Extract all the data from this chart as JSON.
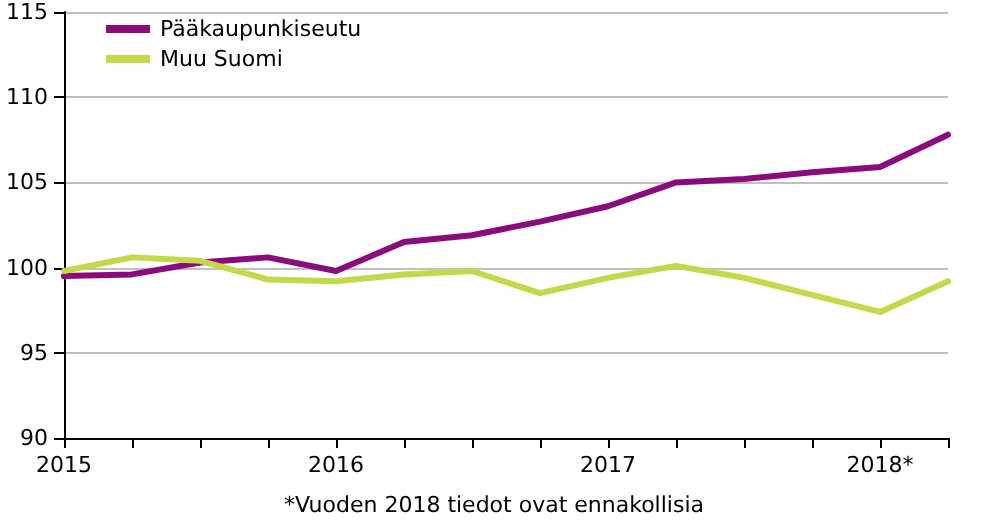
{
  "chart_data": {
    "type": "line",
    "categories": [
      "2015",
      null,
      null,
      null,
      "2016",
      null,
      null,
      null,
      "2017",
      null,
      null,
      null,
      "2018*",
      null
    ],
    "series": [
      {
        "name": "Pääkaupunkiseutu",
        "color": "#8b0a7c",
        "values": [
          99.5,
          99.6,
          100.3,
          100.6,
          99.8,
          101.5,
          101.9,
          102.7,
          103.6,
          105.0,
          105.2,
          105.6,
          105.9,
          107.8
        ]
      },
      {
        "name": "Muu Suomi",
        "color": "#c3d94a",
        "values": [
          99.8,
          100.6,
          100.4,
          99.3,
          99.2,
          99.6,
          99.8,
          98.5,
          99.4,
          100.1,
          99.4,
          98.4,
          97.4,
          99.2
        ]
      }
    ],
    "ylim": [
      90,
      115
    ],
    "yticks": [
      90,
      95,
      100,
      105,
      110,
      115
    ],
    "grid": "y",
    "legend": "top left",
    "marker": "none",
    "line_style": "solid",
    "annotations": [
      "*Vuoden 2018 tiedot ovat ennakollisia"
    ]
  }
}
